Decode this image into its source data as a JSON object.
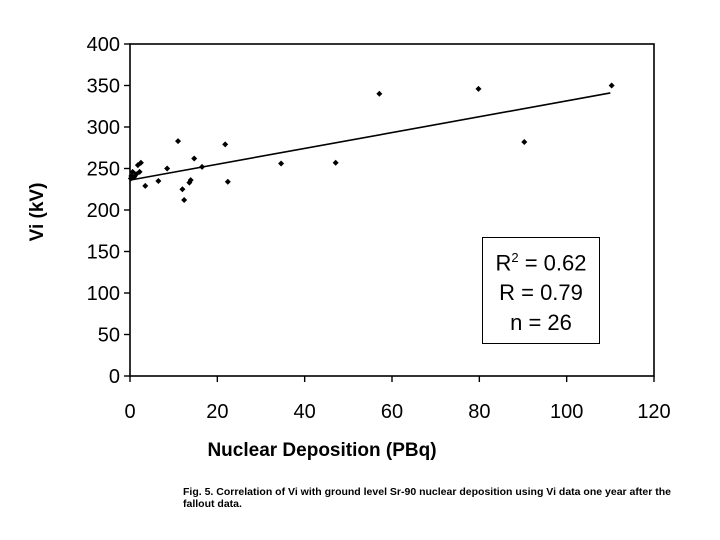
{
  "chart_data": {
    "type": "scatter",
    "title": "",
    "xlabel": "Nuclear Deposition (PBq)",
    "ylabel": "Vi (kV)",
    "xlim": [
      0,
      120
    ],
    "ylim": [
      0,
      400
    ],
    "xticks": [
      0,
      20,
      40,
      60,
      80,
      100,
      120
    ],
    "yticks": [
      0,
      50,
      100,
      150,
      200,
      250,
      300,
      350,
      400
    ],
    "grid": false,
    "points": [
      {
        "x": 0.3,
        "y": 241
      },
      {
        "x": 0.6,
        "y": 246
      },
      {
        "x": 1.0,
        "y": 240
      },
      {
        "x": 1.8,
        "y": 254
      },
      {
        "x": 2.2,
        "y": 246
      },
      {
        "x": 2.5,
        "y": 257
      },
      {
        "x": 3.5,
        "y": 229
      },
      {
        "x": 6.5,
        "y": 235
      },
      {
        "x": 8.5,
        "y": 250
      },
      {
        "x": 11.0,
        "y": 283
      },
      {
        "x": 12.0,
        "y": 225
      },
      {
        "x": 12.4,
        "y": 212
      },
      {
        "x": 13.6,
        "y": 233
      },
      {
        "x": 13.9,
        "y": 236
      },
      {
        "x": 14.7,
        "y": 262
      },
      {
        "x": 16.5,
        "y": 252
      },
      {
        "x": 21.8,
        "y": 279
      },
      {
        "x": 22.4,
        "y": 234
      },
      {
        "x": 34.6,
        "y": 256
      },
      {
        "x": 47.1,
        "y": 257
      },
      {
        "x": 57.1,
        "y": 340
      },
      {
        "x": 79.8,
        "y": 346
      },
      {
        "x": 90.3,
        "y": 282
      },
      {
        "x": 110.3,
        "y": 350
      },
      {
        "x": 0.2,
        "y": 238
      },
      {
        "x": 1.4,
        "y": 243
      }
    ],
    "trendline": {
      "x": [
        0,
        110
      ],
      "y": [
        236,
        341
      ]
    },
    "annotations": [
      "R",
      "2",
      " = 0.62",
      "R = 0.79",
      "n = 26"
    ]
  },
  "stats": {
    "r2_prefix": "R",
    "r2_sup": "2",
    "r2_value": " = 0.62",
    "r_line": "R = 0.79",
    "n_line": "n = 26"
  },
  "caption": {
    "text": "Fig. 5.  Correlation of Vi with ground level Sr-90 nuclear deposition using Vi data one year after the fallout data."
  }
}
